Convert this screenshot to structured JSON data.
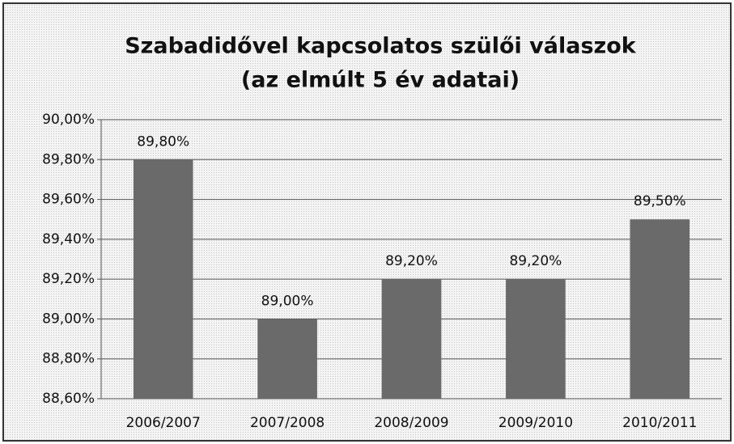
{
  "chart_data": {
    "type": "bar",
    "title": "Szabadidővel kapcsolatos szülői válaszok",
    "subtitle": "(az elmúlt  5 év adatai)",
    "categories": [
      "2006/2007",
      "2007/2008",
      "2008/2009",
      "2009/2010",
      "2010/2011"
    ],
    "values": [
      89.8,
      89.0,
      89.2,
      89.2,
      89.5
    ],
    "value_labels": [
      "89,80%",
      "89,00%",
      "89,20%",
      "89,20%",
      "89,50%"
    ],
    "color": "#6a6a6a",
    "ylim": [
      88.6,
      90.0
    ],
    "yticks": [
      {
        "value": 88.6,
        "label": "88,60%"
      },
      {
        "value": 88.8,
        "label": "88,80%"
      },
      {
        "value": 89.0,
        "label": "89,00%"
      },
      {
        "value": 89.2,
        "label": "89,20%"
      },
      {
        "value": 89.4,
        "label": "89,40%"
      },
      {
        "value": 89.6,
        "label": "89,60%"
      },
      {
        "value": 89.8,
        "label": "89,80%"
      },
      {
        "value": 90.0,
        "label": "90,00%"
      }
    ],
    "grid": true
  }
}
